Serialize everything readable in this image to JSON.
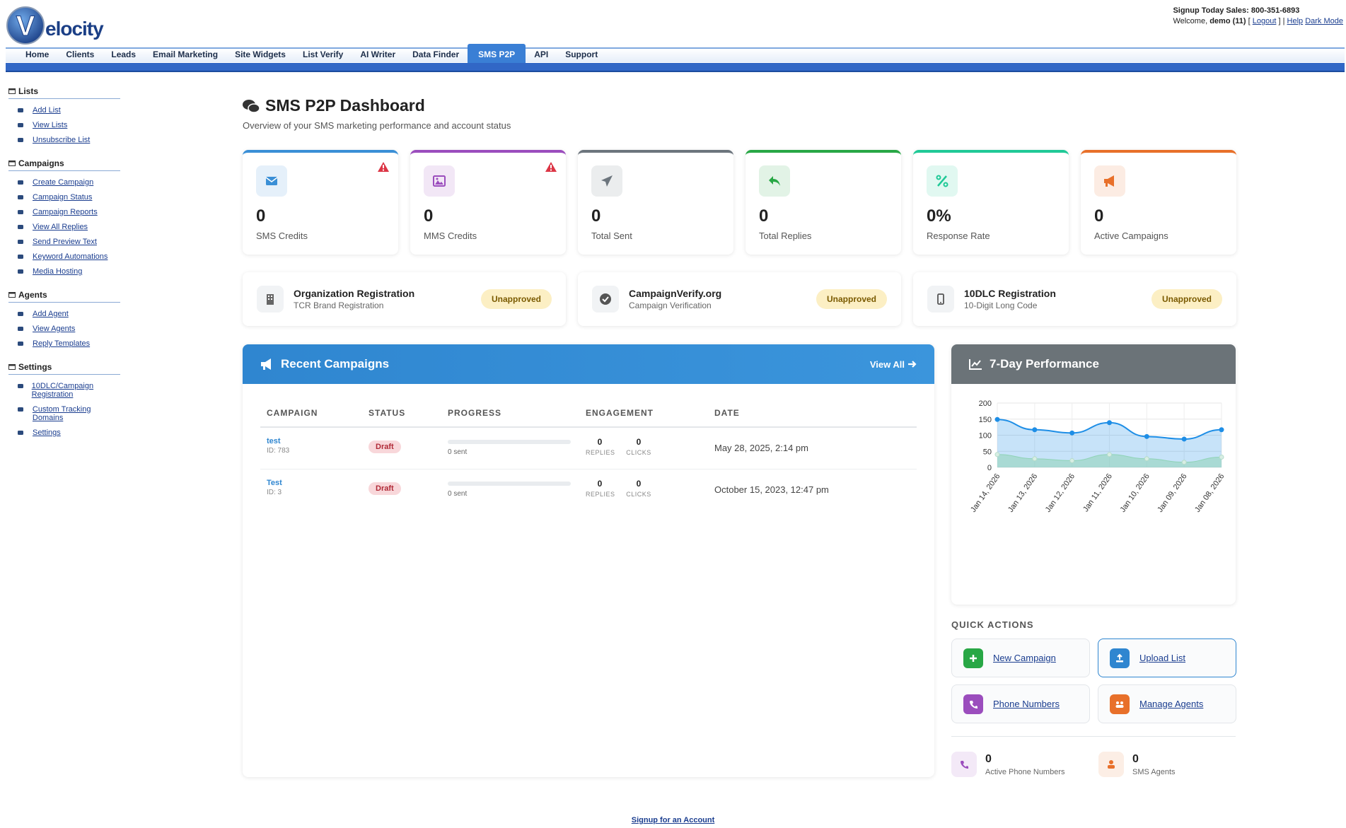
{
  "header": {
    "logo_letter": "V",
    "logo_text": "elocity",
    "sales": "Signup Today Sales: 800-351-6893",
    "welcome": "Welcome,",
    "user": "demo (11)",
    "open": "[",
    "logout": "Logout",
    "close": "] |",
    "help": "Help",
    "dark_mode": "Dark Mode"
  },
  "nav": {
    "items": [
      "Home",
      "Clients",
      "Leads",
      "Email Marketing",
      "Site Widgets",
      "List Verify",
      "AI Writer",
      "Data Finder",
      "SMS P2P",
      "API",
      "Support"
    ],
    "active": 8
  },
  "sidebar": {
    "sections": [
      {
        "title": "Lists",
        "items": [
          "Add List",
          "View Lists",
          "Unsubscribe List"
        ]
      },
      {
        "title": "Campaigns",
        "items": [
          "Create Campaign",
          "Campaign Status",
          "Campaign Reports",
          "View All Replies",
          "Send Preview Text",
          "Keyword Automations",
          "Media Hosting"
        ]
      },
      {
        "title": "Agents",
        "items": [
          "Add Agent",
          "View Agents",
          "Reply Templates"
        ]
      },
      {
        "title": "Settings",
        "items": [
          "10DLC/Campaign Registration",
          "Custom Tracking Domains",
          "Settings"
        ]
      }
    ]
  },
  "dashboard": {
    "title": "SMS P2P Dashboard",
    "subtitle": "Overview of your SMS marketing performance and account status"
  },
  "stats": [
    {
      "value": "0",
      "label": "SMS Credits",
      "color": "#3a8fd6",
      "warning": true
    },
    {
      "value": "0",
      "label": "MMS Credits",
      "color": "#9b4dbd",
      "warning": true
    },
    {
      "value": "0",
      "label": "Total Sent",
      "color": "#6c757d",
      "warning": false
    },
    {
      "value": "0",
      "label": "Total Replies",
      "color": "#28a745",
      "warning": false
    },
    {
      "value": "0%",
      "label": "Response Rate",
      "color": "#20c997",
      "warning": false
    },
    {
      "value": "0",
      "label": "Active Campaigns",
      "color": "#e8702a",
      "warning": false
    }
  ],
  "registrations": [
    {
      "title": "Organization Registration",
      "subtitle": "TCR Brand Registration",
      "status": "Unapproved"
    },
    {
      "title": "CampaignVerify.org",
      "subtitle": "Campaign Verification",
      "status": "Unapproved"
    },
    {
      "title": "10DLC Registration",
      "subtitle": "10-Digit Long Code",
      "status": "Unapproved"
    }
  ],
  "recent_campaigns": {
    "title": "Recent Campaigns",
    "view_all": "View All",
    "columns": [
      "CAMPAIGN",
      "STATUS",
      "PROGRESS",
      "ENGAGEMENT",
      "DATE"
    ],
    "rows": [
      {
        "name": "test",
        "id": "ID: 783",
        "status": "Draft",
        "progress": "0 sent",
        "replies": "0",
        "replies_label": "REPLIES",
        "clicks": "0",
        "clicks_label": "CLICKS",
        "date": "May 28, 2025, 2:14 pm"
      },
      {
        "name": "Test",
        "id": "ID: 3",
        "status": "Draft",
        "progress": "0 sent",
        "replies": "0",
        "replies_label": "REPLIES",
        "clicks": "0",
        "clicks_label": "CLICKS",
        "date": "October 15, 2023, 12:47 pm"
      }
    ]
  },
  "chart_data": {
    "type": "line",
    "title": "7-Day Performance",
    "categories": [
      "Jan 14, 2026",
      "Jan 13, 2026",
      "Jan 12, 2026",
      "Jan 11, 2026",
      "Jan 10, 2026",
      "Jan 09, 2026",
      "Jan 08, 2026"
    ],
    "series": [
      {
        "color": "#1e8ee6",
        "values": [
          149,
          117,
          107,
          139,
          96,
          88,
          117
        ]
      },
      {
        "color": "#8fd3b6",
        "values": [
          40,
          27,
          21,
          40,
          27,
          16,
          32
        ]
      }
    ],
    "ylim": [
      0,
      200
    ],
    "yticks": [
      0,
      50,
      100,
      150,
      200
    ],
    "grid": true,
    "area": true
  },
  "quick_actions": {
    "title": "QUICK ACTIONS",
    "items": [
      {
        "label": "New Campaign",
        "color": "#28a745"
      },
      {
        "label": "Upload List",
        "color": "#2f86d0"
      },
      {
        "label": "Phone Numbers",
        "color": "#9b4dbd"
      },
      {
        "label": "Manage Agents",
        "color": "#e8702a"
      }
    ]
  },
  "counts": [
    {
      "value": "0",
      "label": "Active Phone Numbers",
      "color": "#9b4dbd"
    },
    {
      "value": "0",
      "label": "SMS Agents",
      "color": "#e8702a"
    }
  ],
  "footer": {
    "link": "Signup for an Account"
  }
}
